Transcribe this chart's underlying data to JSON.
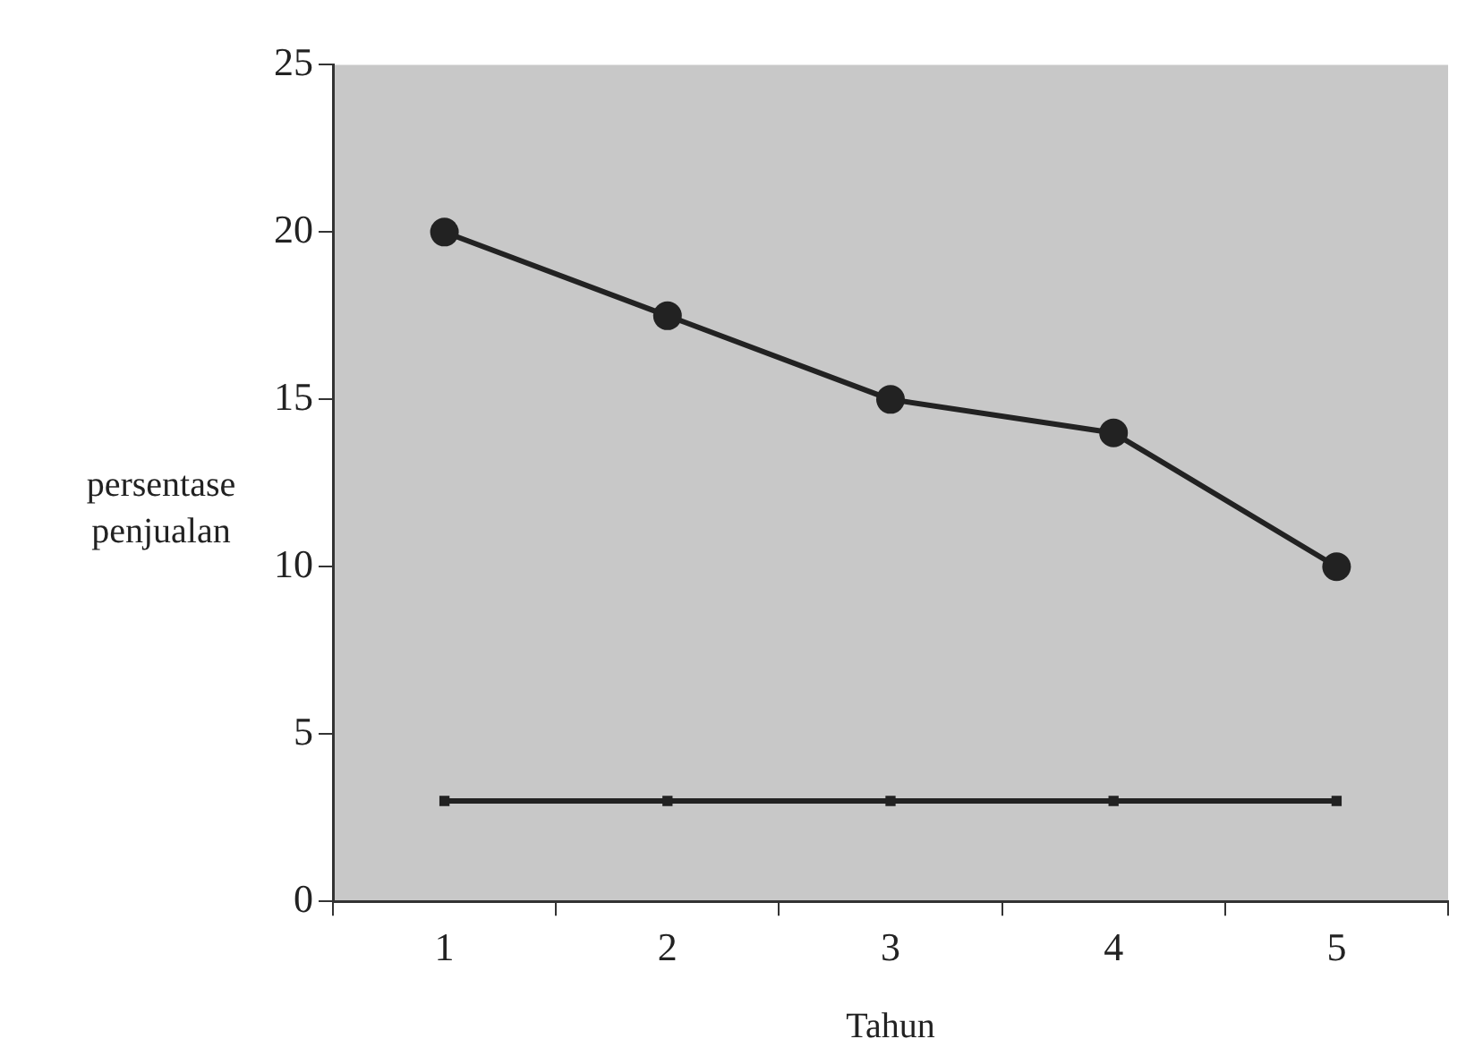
{
  "chart_data": {
    "type": "line",
    "xlabel": "Tahun",
    "ylabel": "persentase penjualan",
    "categories": [
      "1",
      "2",
      "3",
      "4",
      "5"
    ],
    "series": [
      {
        "color": "#222222",
        "values": [
          20,
          17.5,
          15,
          14,
          10
        ],
        "marker": "circle"
      },
      {
        "color": "#222222",
        "values": [
          3,
          3,
          3,
          3,
          3
        ],
        "marker": "square"
      }
    ],
    "ylim": [
      0,
      25
    ],
    "yticks": [
      0,
      5,
      10,
      15,
      20,
      25
    ],
    "grid": false,
    "legend": false,
    "line_style": "solid"
  }
}
